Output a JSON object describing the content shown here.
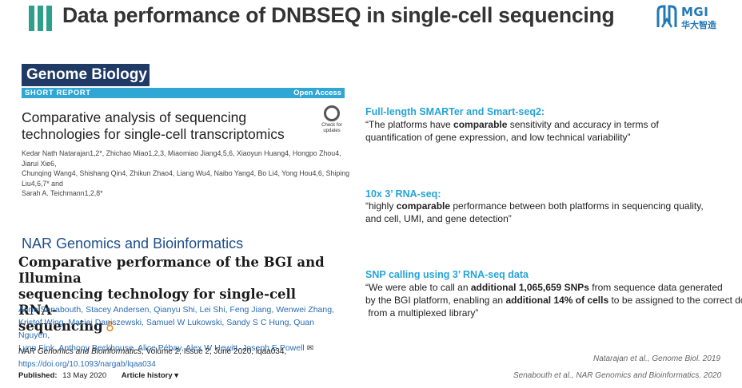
{
  "header": {
    "title": "Data performance of DNBSEQ in single-cell sequencing",
    "accent_color": "#2e9f8a",
    "logo": {
      "name": "MGI",
      "subtitle": "华大智造",
      "color": "#2277b5"
    }
  },
  "genome_biology": {
    "journal": "Genome Biology",
    "section": "SHORT REPORT",
    "access": "Open Access",
    "title_line1": "Comparative analysis of sequencing",
    "title_line2": "technologies for single-cell transcriptomics",
    "check_label": "Check for updates",
    "authors_line1": "Kedar Nath Natarajan1,2*, Zhichao Miao1,2,3, Miaomiao Jiang4,5,6, Xiaoyun Huang4, Hongpo Zhou4, Jiarui Xie6,",
    "authors_line2": "Chunqing Wang4, Shishang Qin4, Zhikun Zhao4, Liang Wu4, Naibo Yang4, Bo Li4, Yong Hou4,6, Shiping Liu4,6,7* and",
    "authors_line3": "Sarah A. Teichmann1,2,8*"
  },
  "nar": {
    "journal": "NAR Genomics and Bioinformatics",
    "title_line1": "Comparative performance of the BGI and Illumina",
    "title_line2": "sequencing technology for single-cell RNA-",
    "title_line3": "sequencing",
    "authors_line1": "Anne Senabouth, Stacey Andersen, Qianyu Shi, Lei Shi, Feng Jiang, Wenwei Zhang,",
    "authors_line2": "Kristof Wing, Maciej Daniszewski, Samuel W Lukowski, Sandy S C Hung, Quan Nguyen,",
    "authors_line3": "Lynn Fink, Anthony Beckhouse, Alice Pébay, Alex W Hewitt, Joseph E Powell",
    "citation_journal": "NAR Genomics and Bioinformatics",
    "citation_rest": ", Volume 2, Issue 2, June 2020, lqaa034,",
    "doi": "https://doi.org/10.1093/nargab/lqaa034",
    "published_label": "Published:",
    "published_date": "13 May 2020",
    "history_label": "Article history ▾"
  },
  "findings": [
    {
      "heading": "Full-length SMARTer and Smart-seq2:",
      "l1_a": "“The platforms have ",
      "l1_b": "comparable",
      "l1_c": " sensitivity and accuracy in terms of",
      "l2": "quantification of gene expression, and low technical variability”"
    },
    {
      "heading": "10x 3’ RNA-seq:",
      "l1_a": "“highly ",
      "l1_b": "comparable",
      "l1_c": " performance between both platforms in sequencing quality,",
      "l2": "and cell, UMI, and gene detection”"
    },
    {
      "heading": "SNP calling using 3’ RNA-seq data",
      "l1_a": "“We were able to call an ",
      "l1_b": "additional 1,065,659 SNPs",
      "l1_c": " from sequence data generated",
      "l2_a": "by the BGI platform, enabling an ",
      "l2_b": "additional 14% of cells",
      "l2_c": " to be assigned to the correct donor",
      "l3": " from a multiplexed library”"
    }
  ],
  "references": {
    "ref1": "Natarajan et al., Genome Biol. 2019",
    "ref2": "Senabouth et al., NAR Genomics and Bioinformatics. 2020"
  }
}
